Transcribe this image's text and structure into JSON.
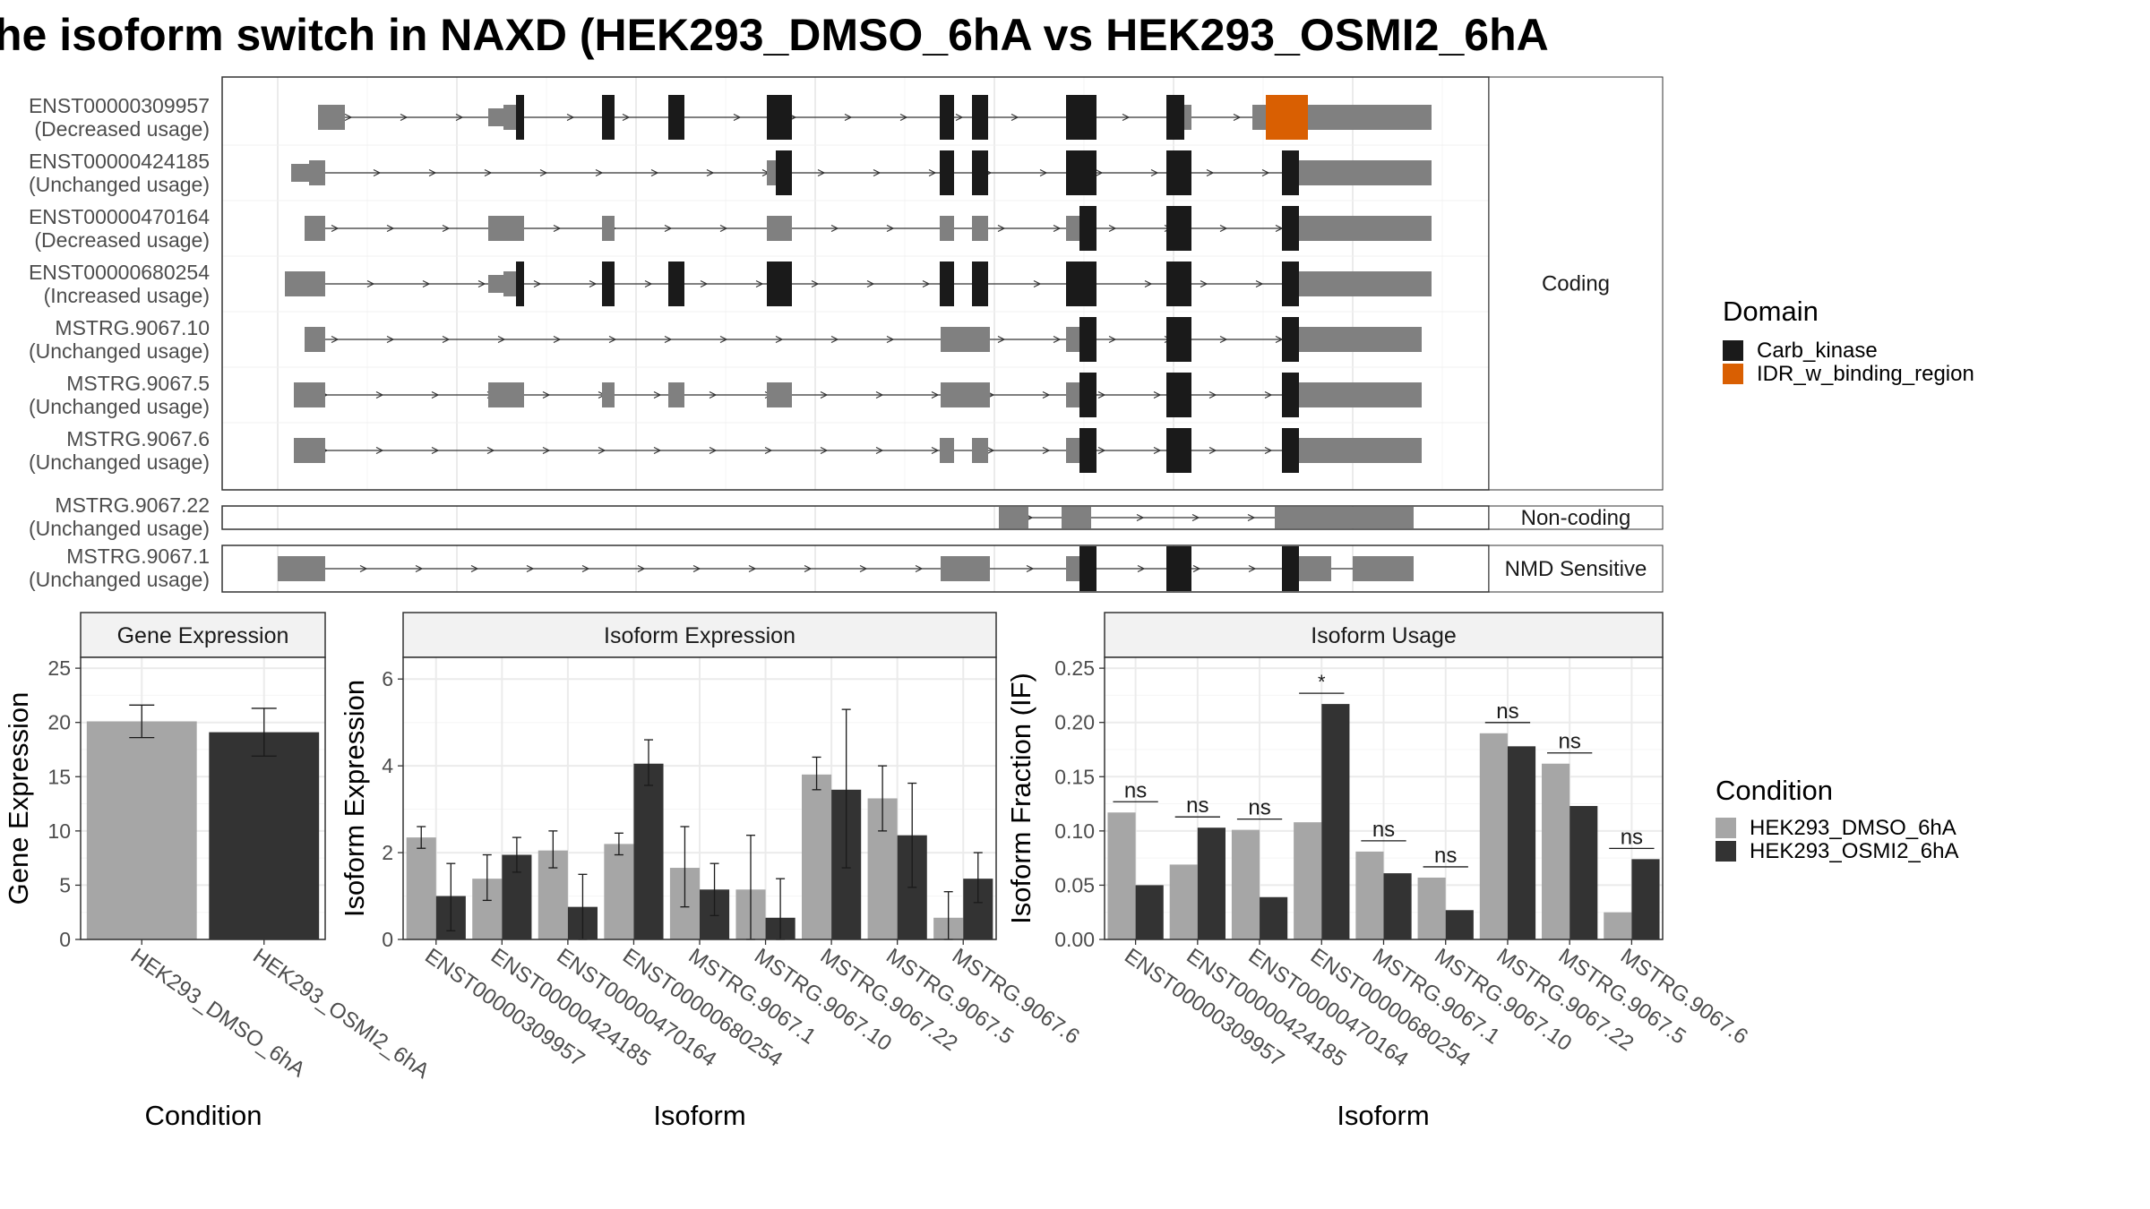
{
  "title": "he isoform switch in NAXD (HEK293_DMSO_6hA vs HEK293_OSMI2_6hA",
  "colors": {
    "utr": "#808080",
    "cds": "#1a1a1a",
    "idr": "#d95f02",
    "dmso": "#a6a6a6",
    "osmi": "#333333",
    "grid": "#ebebeb",
    "strip": "#f2f2f2"
  },
  "structure": {
    "coding_label": "Coding",
    "noncoding_label": "Non-coding",
    "nmd_label": "NMD Sensitive",
    "coding": [
      {
        "id": "ENST00000309957",
        "usage": "(Decreased usage)"
      },
      {
        "id": "ENST00000424185",
        "usage": "(Unchanged usage)"
      },
      {
        "id": "ENST00000470164",
        "usage": "(Decreased usage)"
      },
      {
        "id": "ENST00000680254",
        "usage": "(Increased usage)"
      },
      {
        "id": "MSTRG.9067.10",
        "usage": "(Unchanged usage)"
      },
      {
        "id": "MSTRG.9067.5",
        "usage": "(Unchanged usage)"
      },
      {
        "id": "MSTRG.9067.6",
        "usage": "(Unchanged usage)"
      }
    ],
    "noncoding": [
      {
        "id": "MSTRG.9067.22",
        "usage": "(Unchanged usage)"
      }
    ],
    "nmd": [
      {
        "id": "MSTRG.9067.1",
        "usage": "(Unchanged usage)"
      }
    ]
  },
  "domain_legend": {
    "title": "Domain",
    "items": [
      {
        "label": "Carb_kinase",
        "color": "#1a1a1a"
      },
      {
        "label": "IDR_w_binding_region",
        "color": "#d95f02"
      }
    ]
  },
  "condition_legend": {
    "title": "Condition",
    "items": [
      {
        "label": "HEK293_DMSO_6hA",
        "color": "#a6a6a6"
      },
      {
        "label": "HEK293_OSMI2_6hA",
        "color": "#333333"
      }
    ]
  },
  "chart_data": [
    {
      "type": "bar",
      "title": "Gene Expression",
      "xlabel": "Condition",
      "ylabel": "Gene Expression",
      "ylim": [
        0,
        26
      ],
      "yticks": [
        0,
        5,
        10,
        15,
        20,
        25
      ],
      "categories": [
        "HEK293_DMSO_6hA",
        "HEK293_OSMI2_6hA"
      ],
      "values": [
        20.1,
        19.1
      ],
      "errors": [
        [
          18.6,
          21.6
        ],
        [
          16.9,
          21.3
        ]
      ]
    },
    {
      "type": "bar",
      "title": "Isoform Expression",
      "xlabel": "Isoform",
      "ylabel": "Isoform Expression",
      "ylim": [
        0,
        6.5
      ],
      "yticks": [
        0,
        2,
        4,
        6
      ],
      "categories": [
        "ENST00000309957",
        "ENST00000424185",
        "ENST00000470164",
        "ENST00000680254",
        "MSTRG.9067.1",
        "MSTRG.9067.10",
        "MSTRG.9067.22",
        "MSTRG.9067.5",
        "MSTRG.9067.6"
      ],
      "series": [
        {
          "name": "HEK293_DMSO_6hA",
          "values": [
            2.35,
            1.4,
            2.05,
            2.2,
            1.65,
            1.15,
            3.8,
            3.25,
            0.5
          ],
          "errors": [
            [
              2.1,
              2.6
            ],
            [
              0.9,
              1.95
            ],
            [
              1.65,
              2.5
            ],
            [
              1.95,
              2.45
            ],
            [
              0.75,
              2.6
            ],
            [
              0.0,
              2.4
            ],
            [
              3.45,
              4.2
            ],
            [
              2.5,
              4.0
            ],
            [
              0.0,
              1.1
            ]
          ]
        },
        {
          "name": "HEK293_OSMI2_6hA",
          "values": [
            1.0,
            1.95,
            0.75,
            4.05,
            1.15,
            0.5,
            3.45,
            2.4,
            1.4
          ],
          "errors": [
            [
              0.2,
              1.75
            ],
            [
              1.55,
              2.35
            ],
            [
              0.0,
              1.5
            ],
            [
              3.55,
              4.6
            ],
            [
              0.55,
              1.75
            ],
            [
              0.0,
              1.4
            ],
            [
              1.65,
              5.3
            ],
            [
              1.2,
              3.6
            ],
            [
              0.85,
              2.0
            ]
          ]
        }
      ]
    },
    {
      "type": "bar",
      "title": "Isoform Usage",
      "xlabel": "Isoform",
      "ylabel": "Isoform Fraction (IF)",
      "ylim": [
        0,
        0.26
      ],
      "yticks": [
        0.0,
        0.05,
        0.1,
        0.15,
        0.2,
        0.25
      ],
      "yticklabels": [
        "0.00",
        "0.05",
        "0.10",
        "0.15",
        "0.20",
        "0.25"
      ],
      "categories": [
        "ENST00000309957",
        "ENST00000424185",
        "ENST00000470164",
        "ENST00000680254",
        "MSTRG.9067.1",
        "MSTRG.9067.10",
        "MSTRG.9067.22",
        "MSTRG.9067.5",
        "MSTRG.9067.6"
      ],
      "series": [
        {
          "name": "HEK293_DMSO_6hA",
          "values": [
            0.117,
            0.069,
            0.101,
            0.108,
            0.081,
            0.057,
            0.19,
            0.162,
            0.025
          ]
        },
        {
          "name": "HEK293_OSMI2_6hA",
          "values": [
            0.05,
            0.103,
            0.039,
            0.217,
            0.061,
            0.027,
            0.178,
            0.123,
            0.074
          ]
        }
      ],
      "significance": [
        "ns",
        "ns",
        "ns",
        "*",
        "ns",
        "ns",
        "ns",
        "ns",
        "ns"
      ]
    }
  ]
}
